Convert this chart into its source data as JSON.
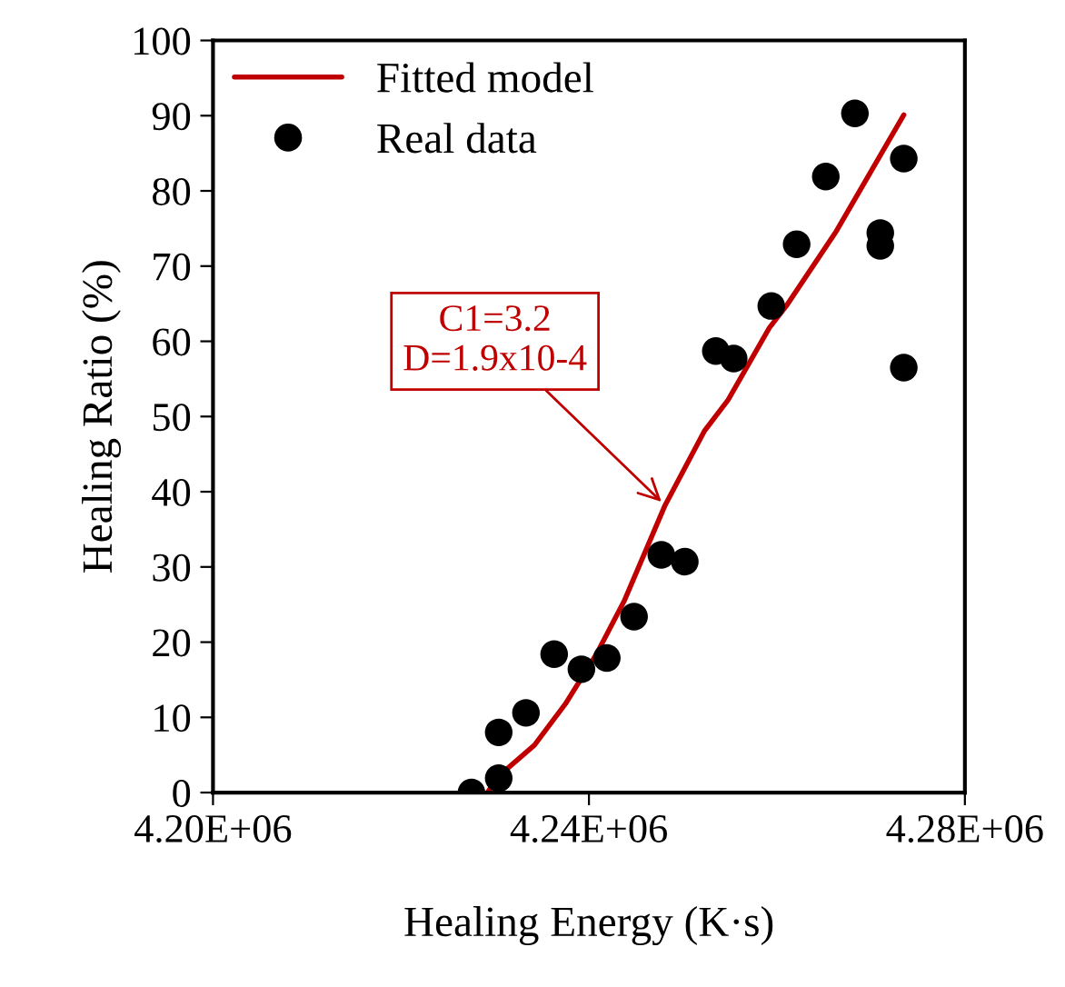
{
  "chart_data": {
    "type": "scatter",
    "xlabel": "Healing Energy (K·s)",
    "ylabel": "Healing Ratio (%)",
    "xlim": [
      4200000,
      4280000
    ],
    "xticks": [
      {
        "value": 4200000,
        "label": "4.20E+06"
      },
      {
        "value": 4240000,
        "label": "4.24E+06"
      },
      {
        "value": 4280000,
        "label": "4.28E+06"
      }
    ],
    "ylim": [
      0,
      100
    ],
    "yticks": [
      0,
      10,
      20,
      30,
      40,
      50,
      60,
      70,
      80,
      90,
      100
    ],
    "grid": false,
    "legend": "top left",
    "series": [
      {
        "name": "Fitted model",
        "type": "line",
        "color": "#c00000",
        "marker": "none",
        "line_style": "solid",
        "x": [
          4229200,
          4230400,
          4234200,
          4237500,
          4240800,
          4243800,
          4248100,
          4252300,
          4254800,
          4259200,
          4261000,
          4266300,
          4273500
        ],
        "values": [
          0,
          2.2,
          6.3,
          11.8,
          18.4,
          25.6,
          38.2,
          48.1,
          52.2,
          61.8,
          64.7,
          74.6,
          90.1
        ]
      },
      {
        "name": "Real data",
        "color": "#000000",
        "marker": "circle",
        "x": [
          4227500,
          4230400,
          4230400,
          4233300,
          4236300,
          4239200,
          4241900,
          4244800,
          4247700,
          4250200,
          4253500,
          4255400,
          4259400,
          4262100,
          4265200,
          4268300,
          4271000,
          4271000,
          4273500,
          4273500
        ],
        "values": [
          0,
          1.9,
          8.0,
          10.6,
          18.4,
          16.4,
          17.9,
          23.4,
          31.6,
          30.7,
          58.7,
          57.7,
          64.7,
          72.9,
          81.9,
          90.3,
          74.4,
          72.7,
          84.3,
          56.5
        ]
      }
    ],
    "annotations": [
      {
        "text": "C1=3.2\nD=1.9x10-4",
        "x": 4248100,
        "y": 38.2
      }
    ]
  }
}
